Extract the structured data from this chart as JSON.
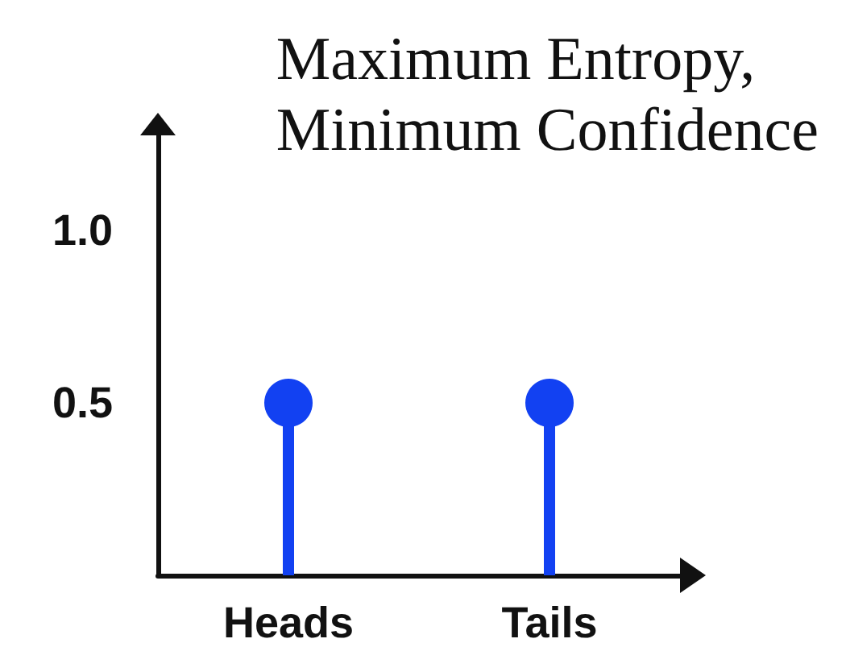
{
  "chart_data": {
    "type": "lollipop",
    "title": "Maximum Entropy,\nMinimum Confidence",
    "categories": [
      "Heads",
      "Tails"
    ],
    "values": [
      0.5,
      0.5
    ],
    "color": "#1241f2",
    "ylim": [
      0,
      1.28
    ],
    "yticks": [
      {
        "value": 0.5,
        "label": "0.5"
      },
      {
        "value": 1,
        "label": "1.0"
      }
    ],
    "grid": false,
    "marker": "circle"
  }
}
